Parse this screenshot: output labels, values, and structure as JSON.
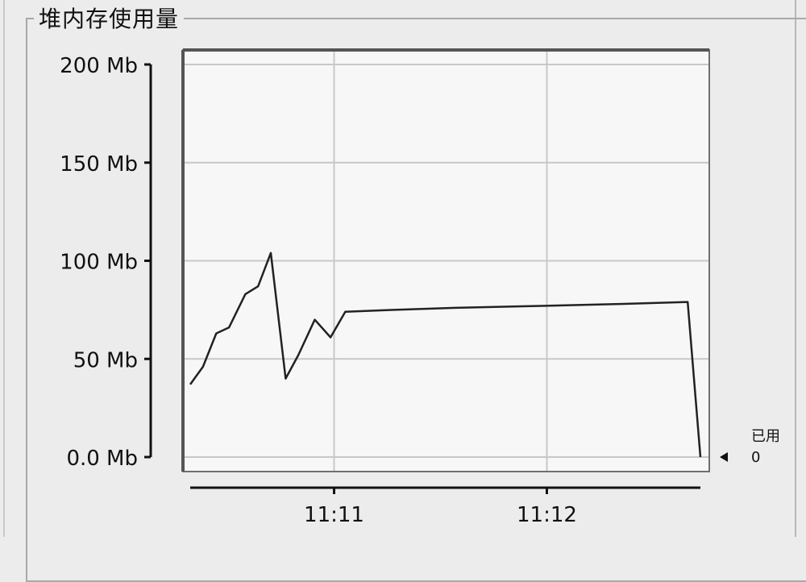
{
  "panel": {
    "title": "堆内存使用量"
  },
  "legend": {
    "label": "已用",
    "value": "0",
    "marker": "triangle-left-icon"
  },
  "colors": {
    "plot_background": "#f7f7f7",
    "grid": "#c8c8c8",
    "line": "#222222",
    "frame": "#6f6f6f"
  },
  "chart_data": {
    "type": "line",
    "title": "堆内存使用量",
    "ylabel": "",
    "xlabel": "",
    "ylim": [
      0,
      200
    ],
    "xlim": [
      0,
      100
    ],
    "grid": true,
    "legend_position": "right",
    "y_ticks": [
      {
        "value": 200,
        "label": "200 Mb"
      },
      {
        "value": 150,
        "label": "150 Mb"
      },
      {
        "value": 100,
        "label": "100 Mb"
      },
      {
        "value": 50,
        "label": "50 Mb"
      },
      {
        "value": 0,
        "label": "0.0 Mb"
      }
    ],
    "x_ticks": [
      {
        "value": 28.2,
        "label": "11:11"
      },
      {
        "value": 69.9,
        "label": "11:12"
      }
    ],
    "series": [
      {
        "name": "已用",
        "x": [
          0,
          2.5,
          5.1,
          7.6,
          10.8,
          13.3,
          15.8,
          18.7,
          21.2,
          24.4,
          27.5,
          30.4,
          39.9,
          51.9,
          68.7,
          84.2,
          97.5,
          100
        ],
        "y": [
          37,
          46,
          63,
          66,
          83,
          87,
          104,
          40,
          52,
          70,
          61,
          74,
          75,
          76,
          77,
          78,
          79,
          0
        ]
      }
    ]
  }
}
